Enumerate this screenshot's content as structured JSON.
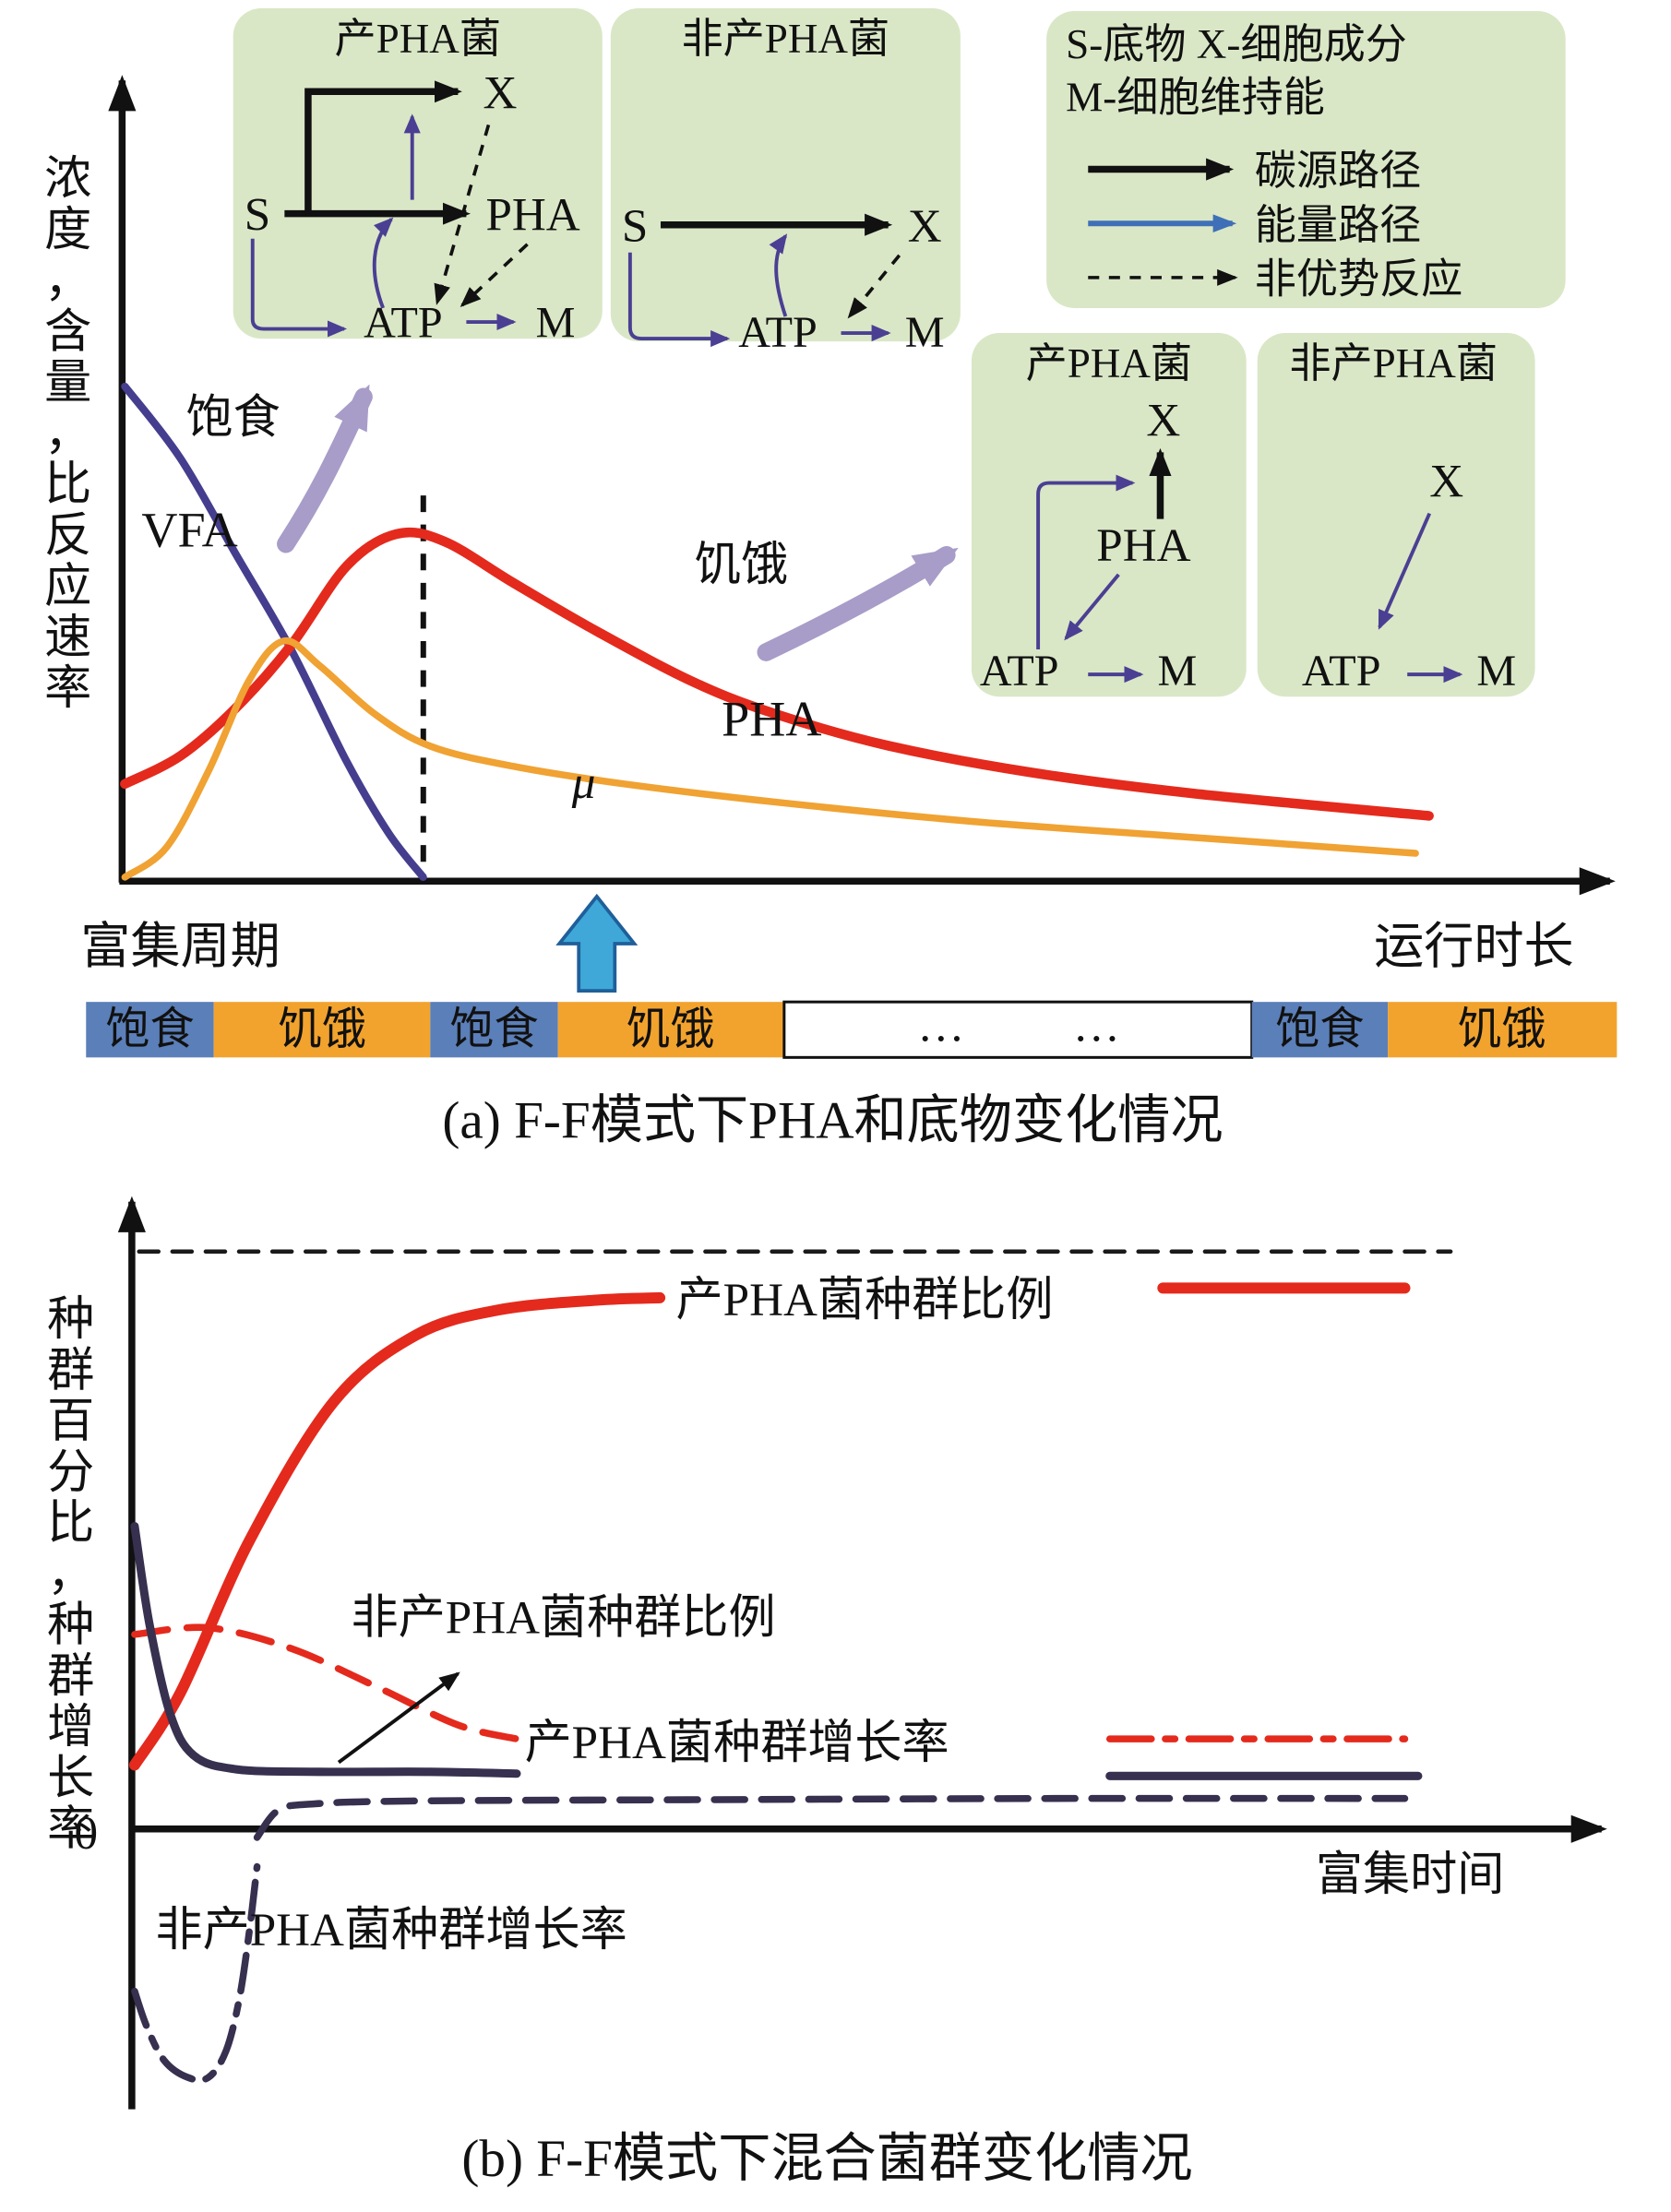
{
  "colors": {
    "red": "#e42a1d",
    "orange": "#f0a233",
    "indigo": "#453e8e",
    "dark_purple": "#38304f",
    "lavender_arrow": "#a89cc8",
    "energy_blue": "#3f6fb7",
    "diagram_purple": "#4b3f93",
    "inset_green": "#d9e7c6",
    "feast_blue": "#5b7fb8",
    "famine_orange": "#f2a32e",
    "cycle_arrow_blue": "#3fa8d8"
  },
  "insets": {
    "legend": {
      "line1": "S-底物  X-细胞成分",
      "line2": "M-细胞维持能",
      "carbon": "碳源路径",
      "energy": "能量路径",
      "nondominant": "非优势反应"
    },
    "feast_producer": {
      "title": "产PHA菌",
      "s": "S",
      "pha": "PHA",
      "x": "X",
      "atp": "ATP",
      "m": "M"
    },
    "feast_non": {
      "title": "非产PHA菌",
      "s": "S",
      "x": "X",
      "atp": "ATP",
      "m": "M"
    },
    "famine_producer": {
      "title": "产PHA菌",
      "x": "X",
      "pha": "PHA",
      "atp": "ATP",
      "m": "M"
    },
    "famine_non": {
      "title": "非产PHA菌",
      "x": "X",
      "atp": "ATP",
      "m": "M"
    }
  },
  "panel_a": {
    "x_left_label": "富集周期",
    "labels": {
      "feast": "饱食",
      "vfa": "VFA",
      "famine": "饥饿",
      "pha": "PHA",
      "mu": "μ"
    },
    "phase_bar": {
      "dots": "…",
      "segments": [
        {
          "label": "饱食",
          "kind": "feast"
        },
        {
          "label": "饥饿",
          "kind": "famine"
        },
        {
          "label": "饱食",
          "kind": "feast"
        },
        {
          "label": "饥饿",
          "kind": "famine"
        },
        {
          "label": "",
          "kind": "gap"
        },
        {
          "label": "饱食",
          "kind": "feast"
        },
        {
          "label": "饥饿",
          "kind": "famine"
        }
      ]
    }
  },
  "panel_b": {
    "zero": "0",
    "labels": {
      "pha_ratio": "产PHA菌种群比例",
      "non_ratio": "非产PHA菌种群比例",
      "pha_growth": "产PHA菌种群增长率",
      "non_growth": "非产PHA菌种群增长率"
    }
  },
  "chart_data": [
    {
      "id": "panel-a",
      "type": "line",
      "title": "(a) F-F模式下PHA和底物变化情况",
      "ylabel": "浓度，含量，比反应速率",
      "xlabel": "运行时长",
      "xlim": [
        0,
        100
      ],
      "ylim": [
        0,
        100
      ],
      "grid": false,
      "legend_position": "none",
      "series": [
        {
          "id": "vfa",
          "name": "VFA",
          "color": "#453e8e",
          "width": 5.5,
          "x": [
            0,
            3.7,
            7.4,
            11.1,
            14.8,
            17.6,
            19.9
          ],
          "y": [
            62,
            53,
            41,
            29,
            15,
            6,
            0.5
          ]
        },
        {
          "id": "pha",
          "name": "PHA",
          "color": "#e42a1d",
          "width": 7,
          "x": [
            0,
            3.7,
            7.4,
            11.1,
            14.8,
            18.1,
            21.3,
            25.9,
            31.5,
            38,
            43.5,
            50.9,
            60.2,
            71.3,
            87
          ],
          "y": [
            12.2,
            15.7,
            21.7,
            29.6,
            39.5,
            43.5,
            42.6,
            37.4,
            31.3,
            24.9,
            20.9,
            17,
            13.7,
            11,
            8.2
          ]
        },
        {
          "id": "mu",
          "name": "μ",
          "color": "#f0a233",
          "width": 5,
          "x": [
            0,
            2.8,
            5.6,
            8.3,
            10.6,
            13,
            16.7,
            20.4,
            25.9,
            33.3,
            43.5,
            56.5,
            70.4,
            86.1
          ],
          "y": [
            0.5,
            4.3,
            13.9,
            25.2,
            30.1,
            27,
            20.9,
            16.9,
            14.4,
            12.2,
            9.9,
            7.5,
            5.6,
            3.5
          ]
        }
      ]
    },
    {
      "id": "panel-b",
      "type": "line",
      "title": "(b) F-F模式下混合菌群变化情况",
      "ylabel": "种群百分比，种群增长率",
      "xlabel": "富集时间",
      "xlim": [
        0,
        100
      ],
      "ylim": [
        -45,
        100
      ],
      "grid": false,
      "legend_position": "inline-annotations",
      "series": [
        {
          "id": "asymptote",
          "name": "上限渐近线",
          "color": "#1a1a1a",
          "width": 3,
          "dash": "14 10",
          "x": [
            0.3,
            89.2
          ],
          "y": [
            95,
            95
          ]
        },
        {
          "id": "pha_ratio",
          "name": "产PHA菌种群比例",
          "color": "#e42a1d",
          "width": 8,
          "x": [
            0,
            3.1,
            7.8,
            13.5,
            19.1,
            24.7,
            31.3,
            35.6
          ],
          "y": [
            10.5,
            22.4,
            47.5,
            70.3,
            81.3,
            85.4,
            87,
            87.4
          ]
        },
        {
          "id": "pha_ratio_cont",
          "name": "产PHA菌种群比例(续)",
          "color": "#e42a1d",
          "width": 8,
          "x": [
            69.7,
            86.1
          ],
          "y": [
            89,
            89
          ]
        },
        {
          "id": "non_ratio",
          "name": "非产PHA菌种群比例",
          "color": "#e42a1d",
          "width": 5,
          "dash": "24 14",
          "x": [
            0,
            5,
            10.6,
            16.3,
            21.9,
            25.9
          ],
          "y": [
            32,
            33.1,
            29.7,
            23.5,
            17.1,
            14.8
          ]
        },
        {
          "id": "non_ratio_cont",
          "name": "非产PHA菌种群比例(续)",
          "color": "#e42a1d",
          "width": 5,
          "dash": "30 10 7 10",
          "x": [
            66.1,
            86.1
          ],
          "y": [
            14.8,
            14.8
          ]
        },
        {
          "id": "pha_growth",
          "name": "产PHA菌种群增长率",
          "color": "#38304f",
          "width": 6,
          "x": [
            0,
            1,
            2.4,
            4,
            6.9,
            12.5,
            20,
            25.9
          ],
          "y": [
            49.8,
            33.8,
            19,
            12.1,
            9.8,
            9.4,
            9.4,
            9.1
          ]
        },
        {
          "id": "pha_growth_cont",
          "name": "产PHA菌种群增长率(续)",
          "color": "#38304f",
          "width": 6,
          "x": [
            66.1,
            87
          ],
          "y": [
            8.7,
            8.7
          ]
        },
        {
          "id": "non_growth",
          "name": "非产PHA菌种群增长率",
          "color": "#38304f",
          "width": 5,
          "dash": "22 12",
          "x": [
            8.3,
            9.7,
            12,
            19.1,
            37.9,
            62.4,
            86.1
          ],
          "y": [
            -1.4,
            3,
            4.1,
            4.6,
            4.8,
            5,
            5
          ]
        },
        {
          "id": "non_growth_dip",
          "name": "非产PHA菌种群增长率(负增长段)",
          "color": "#38304f",
          "width": 5,
          "dash": "26 10 7 10",
          "x": [
            0,
            0.8,
            2,
            3.6,
            5,
            6.2,
            7.1,
            7.8,
            8.3
          ],
          "y": [
            -26.7,
            -32.4,
            -38.1,
            -40.9,
            -40.9,
            -36.5,
            -27.9,
            -16.4,
            -6.2
          ]
        }
      ]
    }
  ]
}
